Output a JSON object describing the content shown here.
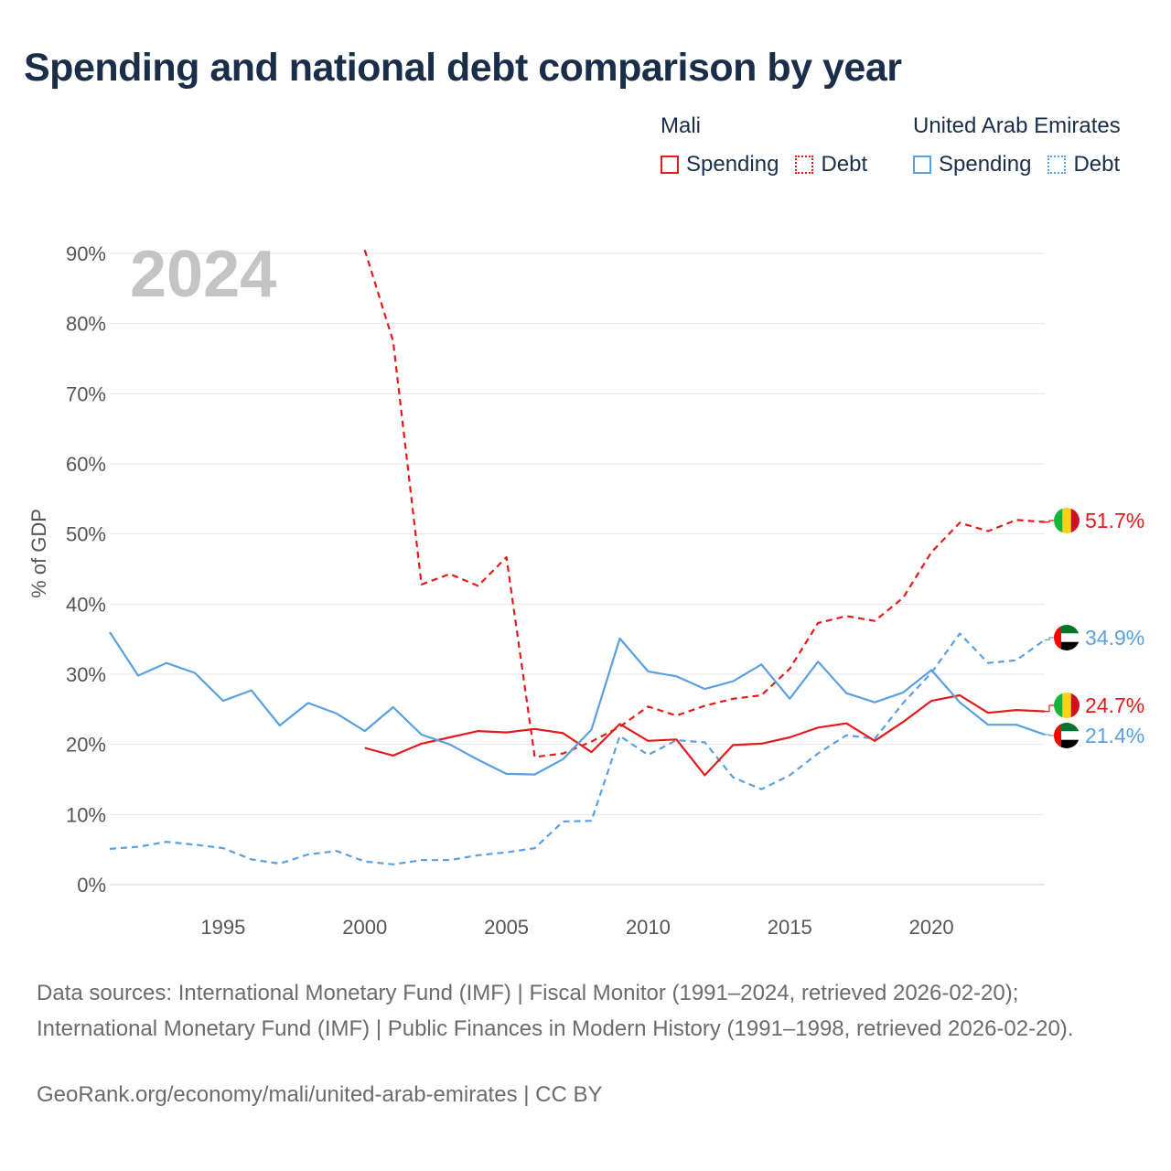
{
  "title": "Spending and national debt comparison by year",
  "legend": {
    "groups": [
      {
        "country": "Mali",
        "color": "#e31a1c",
        "items": [
          {
            "label": "Spending",
            "style": "solid"
          },
          {
            "label": "Debt",
            "style": "dotted"
          }
        ]
      },
      {
        "country": "United Arab Emirates",
        "color": "#5aa0e0",
        "items": [
          {
            "label": "Spending",
            "style": "solid"
          },
          {
            "label": "Debt",
            "style": "dotted"
          }
        ]
      }
    ]
  },
  "year_overlay": "2024",
  "chart_data": {
    "type": "line",
    "ylabel": "% of GDP",
    "xlim": [
      1991,
      2024
    ],
    "ylim": [
      0,
      90
    ],
    "yticks": [
      0,
      10,
      20,
      30,
      40,
      50,
      60,
      70,
      80,
      90
    ],
    "ytick_labels": [
      "0%",
      "10%",
      "20%",
      "30%",
      "40%",
      "50%",
      "60%",
      "70%",
      "80%",
      "90%"
    ],
    "xticks": [
      1995,
      2000,
      2005,
      2010,
      2015,
      2020
    ],
    "xtick_labels": [
      "1995",
      "2000",
      "2005",
      "2010",
      "2015",
      "2020"
    ],
    "series": [
      {
        "name": "Mali Debt",
        "country": "Mali",
        "kind": "Debt",
        "color": "#e31a1c",
        "dash": "dashed",
        "x": [
          2000,
          2001,
          2002,
          2003,
          2004,
          2005,
          2006,
          2007,
          2008,
          2009,
          2010,
          2011,
          2012,
          2013,
          2014,
          2015,
          2016,
          2017,
          2018,
          2019,
          2020,
          2021,
          2022,
          2023,
          2024
        ],
        "y": [
          90.5,
          77.5,
          42.8,
          44.3,
          42.6,
          46.7,
          18.2,
          18.7,
          20.4,
          22.5,
          25.4,
          24.1,
          25.5,
          26.5,
          27.0,
          30.8,
          37.3,
          38.3,
          37.6,
          40.9,
          47.4,
          51.6,
          50.4,
          52.0,
          51.7
        ],
        "end_label": "51.7%"
      },
      {
        "name": "UAE Debt",
        "country": "United Arab Emirates",
        "kind": "Debt",
        "color": "#5aa0e0",
        "dash": "dashed",
        "x": [
          1991,
          1992,
          1993,
          1994,
          1995,
          1996,
          1997,
          1998,
          1999,
          2000,
          2001,
          2002,
          2003,
          2004,
          2005,
          2006,
          2007,
          2008,
          2009,
          2010,
          2011,
          2012,
          2013,
          2014,
          2015,
          2016,
          2017,
          2018,
          2019,
          2020,
          2021,
          2022,
          2023,
          2024
        ],
        "y": [
          5.1,
          5.4,
          6.1,
          5.7,
          5.2,
          3.6,
          3.0,
          4.3,
          4.8,
          3.3,
          2.9,
          3.5,
          3.5,
          4.2,
          4.6,
          5.2,
          9.0,
          9.1,
          21.2,
          18.5,
          20.6,
          20.3,
          15.3,
          13.6,
          15.6,
          18.7,
          21.3,
          20.8,
          25.9,
          30.2,
          35.8,
          31.6,
          32.0,
          34.9
        ],
        "end_label": "34.9%"
      },
      {
        "name": "Mali Spending",
        "country": "Mali",
        "kind": "Spending",
        "color": "#e31a1c",
        "dash": "solid",
        "x": [
          2000,
          2001,
          2002,
          2003,
          2004,
          2005,
          2006,
          2007,
          2008,
          2009,
          2010,
          2011,
          2012,
          2013,
          2014,
          2015,
          2016,
          2017,
          2018,
          2019,
          2020,
          2021,
          2022,
          2023,
          2024
        ],
        "y": [
          19.5,
          18.4,
          20.1,
          21.0,
          21.9,
          21.7,
          22.2,
          21.6,
          18.9,
          22.9,
          20.5,
          20.7,
          15.6,
          19.9,
          20.1,
          21.0,
          22.4,
          23.0,
          20.5,
          23.2,
          26.2,
          27.0,
          24.5,
          24.9,
          24.7
        ],
        "end_label": "24.7%"
      },
      {
        "name": "UAE Spending",
        "country": "United Arab Emirates",
        "kind": "Spending",
        "color": "#5aa0e0",
        "dash": "solid",
        "x": [
          1991,
          1992,
          1993,
          1994,
          1995,
          1996,
          1997,
          1998,
          1999,
          2000,
          2001,
          2002,
          2003,
          2004,
          2005,
          2006,
          2007,
          2008,
          2009,
          2010,
          2011,
          2012,
          2013,
          2014,
          2015,
          2016,
          2017,
          2018,
          2019,
          2020,
          2021,
          2022,
          2023,
          2024
        ],
        "y": [
          36.0,
          29.8,
          31.6,
          30.2,
          26.2,
          27.7,
          22.7,
          25.9,
          24.4,
          21.9,
          25.3,
          21.4,
          20.0,
          17.8,
          15.8,
          15.7,
          17.9,
          22.1,
          35.1,
          30.4,
          29.7,
          27.9,
          29.0,
          31.4,
          26.5,
          31.8,
          27.3,
          26.0,
          27.4,
          30.6,
          26.0,
          22.8,
          22.8,
          21.4
        ],
        "end_label": "21.4%"
      }
    ]
  },
  "footer": {
    "sources": "Data sources: International Monetary Fund (IMF) | Fiscal Monitor (1991–2024, retrieved 2026-02-20); International Monetary Fund (IMF) | Public Finances in Modern History (1991–1998, retrieved 2026-02-20).",
    "link": "GeoRank.org/economy/mali/united-arab-emirates | CC BY"
  }
}
